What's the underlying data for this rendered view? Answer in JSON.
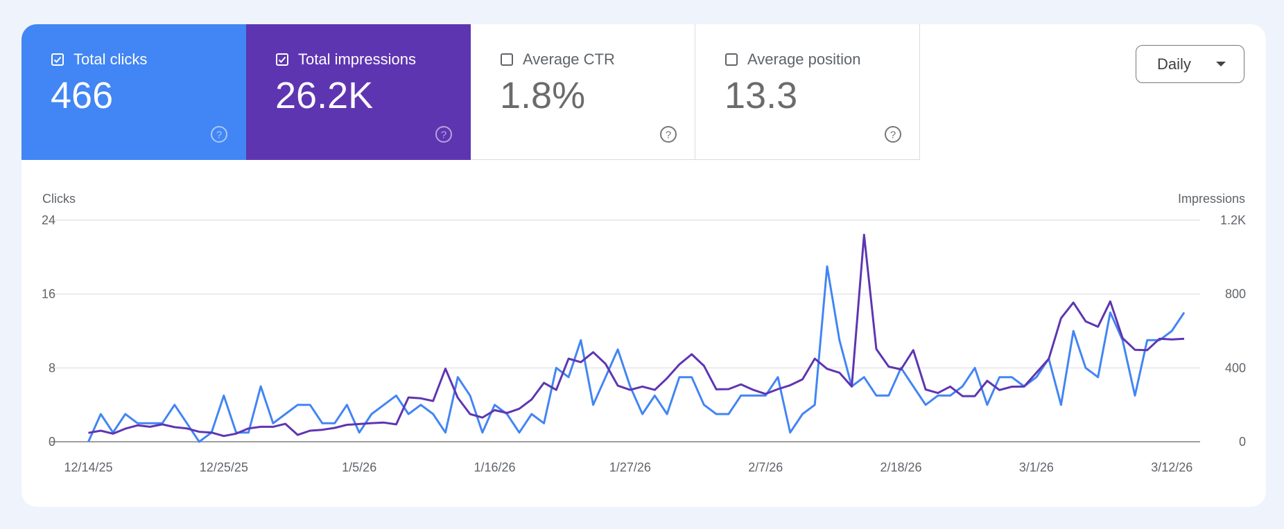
{
  "metrics": [
    {
      "label": "Total clicks",
      "value": "466",
      "checked": true,
      "color": "#4285f4"
    },
    {
      "label": "Total impressions",
      "value": "26.2K",
      "checked": true,
      "color": "#5e35b1"
    },
    {
      "label": "Average CTR",
      "value": "1.8%",
      "checked": false
    },
    {
      "label": "Average position",
      "value": "13.3",
      "checked": false
    }
  ],
  "granularity": {
    "selected": "Daily"
  },
  "chart_data": {
    "type": "line",
    "grid": true,
    "y_left": {
      "label": "Clicks",
      "ticks": [
        "0",
        "8",
        "16",
        "24"
      ],
      "range": [
        0,
        24
      ]
    },
    "y_right": {
      "label": "Impressions",
      "ticks": [
        "0",
        "400",
        "800",
        "1.2K"
      ],
      "range": [
        0,
        1200
      ]
    },
    "x_ticks": [
      "12/14/25",
      "12/25/25",
      "1/5/26",
      "1/16/26",
      "1/27/26",
      "2/7/26",
      "2/18/26",
      "3/1/26",
      "3/12/26"
    ],
    "x": [
      "12/14/25",
      "12/15/25",
      "12/16/25",
      "12/17/25",
      "12/18/25",
      "12/19/25",
      "12/20/25",
      "12/21/25",
      "12/22/25",
      "12/23/25",
      "12/24/25",
      "12/25/25",
      "12/26/25",
      "12/27/25",
      "12/28/25",
      "12/29/25",
      "12/30/25",
      "12/31/25",
      "1/1/26",
      "1/2/26",
      "1/3/26",
      "1/4/26",
      "1/5/26",
      "1/6/26",
      "1/7/26",
      "1/8/26",
      "1/9/26",
      "1/10/26",
      "1/11/26",
      "1/12/26",
      "1/13/26",
      "1/14/26",
      "1/15/26",
      "1/16/26",
      "1/17/26",
      "1/18/26",
      "1/19/26",
      "1/20/26",
      "1/21/26",
      "1/22/26",
      "1/23/26",
      "1/24/26",
      "1/25/26",
      "1/26/26",
      "1/27/26",
      "1/28/26",
      "1/29/26",
      "1/30/26",
      "1/31/26",
      "2/1/26",
      "2/2/26",
      "2/3/26",
      "2/4/26",
      "2/5/26",
      "2/6/26",
      "2/7/26",
      "2/8/26",
      "2/9/26",
      "2/10/26",
      "2/11/26",
      "2/12/26",
      "2/13/26",
      "2/14/26",
      "2/15/26",
      "2/16/26",
      "2/17/26",
      "2/18/26",
      "2/19/26",
      "2/20/26",
      "2/21/26",
      "2/22/26",
      "2/23/26",
      "2/24/26",
      "2/25/26",
      "2/26/26",
      "2/27/26",
      "2/28/26",
      "3/1/26",
      "3/2/26",
      "3/3/26",
      "3/4/26",
      "3/5/26",
      "3/6/26",
      "3/7/26",
      "3/8/26",
      "3/9/26",
      "3/10/26",
      "3/11/26",
      "3/12/26",
      "3/13/26"
    ],
    "series": [
      {
        "name": "Clicks",
        "axis": "left",
        "color": "#4285f4",
        "values": [
          0,
          3,
          1,
          3,
          2,
          2,
          2,
          4,
          2,
          0,
          1,
          5,
          1,
          1,
          6,
          2,
          3,
          4,
          4,
          2,
          2,
          4,
          1,
          3,
          4,
          5,
          3,
          4,
          3,
          1,
          7,
          5,
          1,
          4,
          3,
          1,
          3,
          2,
          8,
          7,
          11,
          4,
          7,
          10,
          6,
          3,
          5,
          3,
          7,
          7,
          4,
          3,
          3,
          5,
          5,
          5,
          7,
          1,
          3,
          4,
          19,
          11,
          6,
          7,
          5,
          5,
          8,
          6,
          4,
          5,
          5,
          6,
          8,
          4,
          7,
          7,
          6,
          7,
          9,
          4,
          12,
          8,
          7,
          14,
          11,
          5,
          11,
          11,
          12,
          14
        ]
      },
      {
        "name": "Impressions",
        "axis": "right",
        "color": "#5e35b1",
        "values": [
          48,
          60,
          44,
          71,
          89,
          81,
          94,
          79,
          72,
          54,
          50,
          31,
          44,
          72,
          81,
          81,
          97,
          37,
          60,
          65,
          75,
          92,
          96,
          101,
          104,
          94,
          240,
          235,
          221,
          396,
          238,
          150,
          131,
          171,
          156,
          179,
          229,
          319,
          281,
          450,
          431,
          485,
          422,
          304,
          281,
          299,
          281,
          344,
          419,
          474,
          411,
          284,
          285,
          311,
          281,
          259,
          285,
          306,
          338,
          450,
          395,
          374,
          299,
          1121,
          502,
          407,
          392,
          496,
          283,
          264,
          299,
          247,
          247,
          330,
          280,
          298,
          299,
          374,
          449,
          669,
          754,
          652,
          623,
          760,
          561,
          498,
          496,
          558,
          554,
          558
        ]
      }
    ]
  }
}
